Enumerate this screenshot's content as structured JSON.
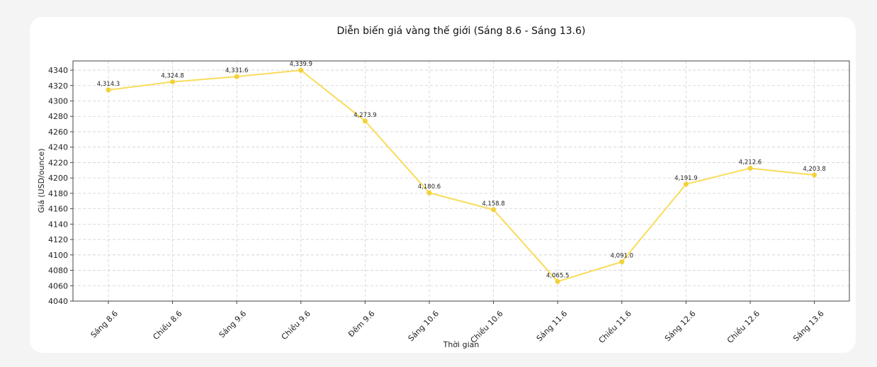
{
  "chart_data": {
    "type": "line",
    "title": "Diễn biến giá vàng thế giới (Sáng 8.6 - Sáng 13.6)",
    "xlabel": "Thời gian",
    "ylabel": "Giá (USD/ounce)",
    "categories": [
      "Sáng 8.6",
      "Chiều 8.6",
      "Sáng 9.6",
      "Chiều 9.6",
      "Đêm 9.6",
      "Sáng 10.6",
      "Chiều 10.6",
      "Sáng 11.6",
      "Chiều 11.6",
      "Sáng 12.6",
      "Chiều 12.6",
      "Sáng 13.6"
    ],
    "values": [
      4314.3,
      4324.8,
      4331.6,
      4339.9,
      4273.9,
      4180.6,
      4158.8,
      4065.5,
      4091.0,
      4191.9,
      4212.6,
      4203.8
    ],
    "value_labels": [
      "4,314.3",
      "4,324.8",
      "4,331.6",
      "4,339.9",
      "4,273.9",
      "4,180.6",
      "4,158.8",
      "4,065.5",
      "4,091.0",
      "4,191.9",
      "4,212.6",
      "4,203.8"
    ],
    "yticks": [
      4040,
      4060,
      4080,
      4100,
      4120,
      4140,
      4160,
      4180,
      4200,
      4220,
      4240,
      4260,
      4280,
      4300,
      4320,
      4340
    ],
    "ylim": [
      4040,
      4352
    ],
    "grid": true,
    "line_color": "#f8dc5a",
    "marker_color": "#f2d139"
  }
}
